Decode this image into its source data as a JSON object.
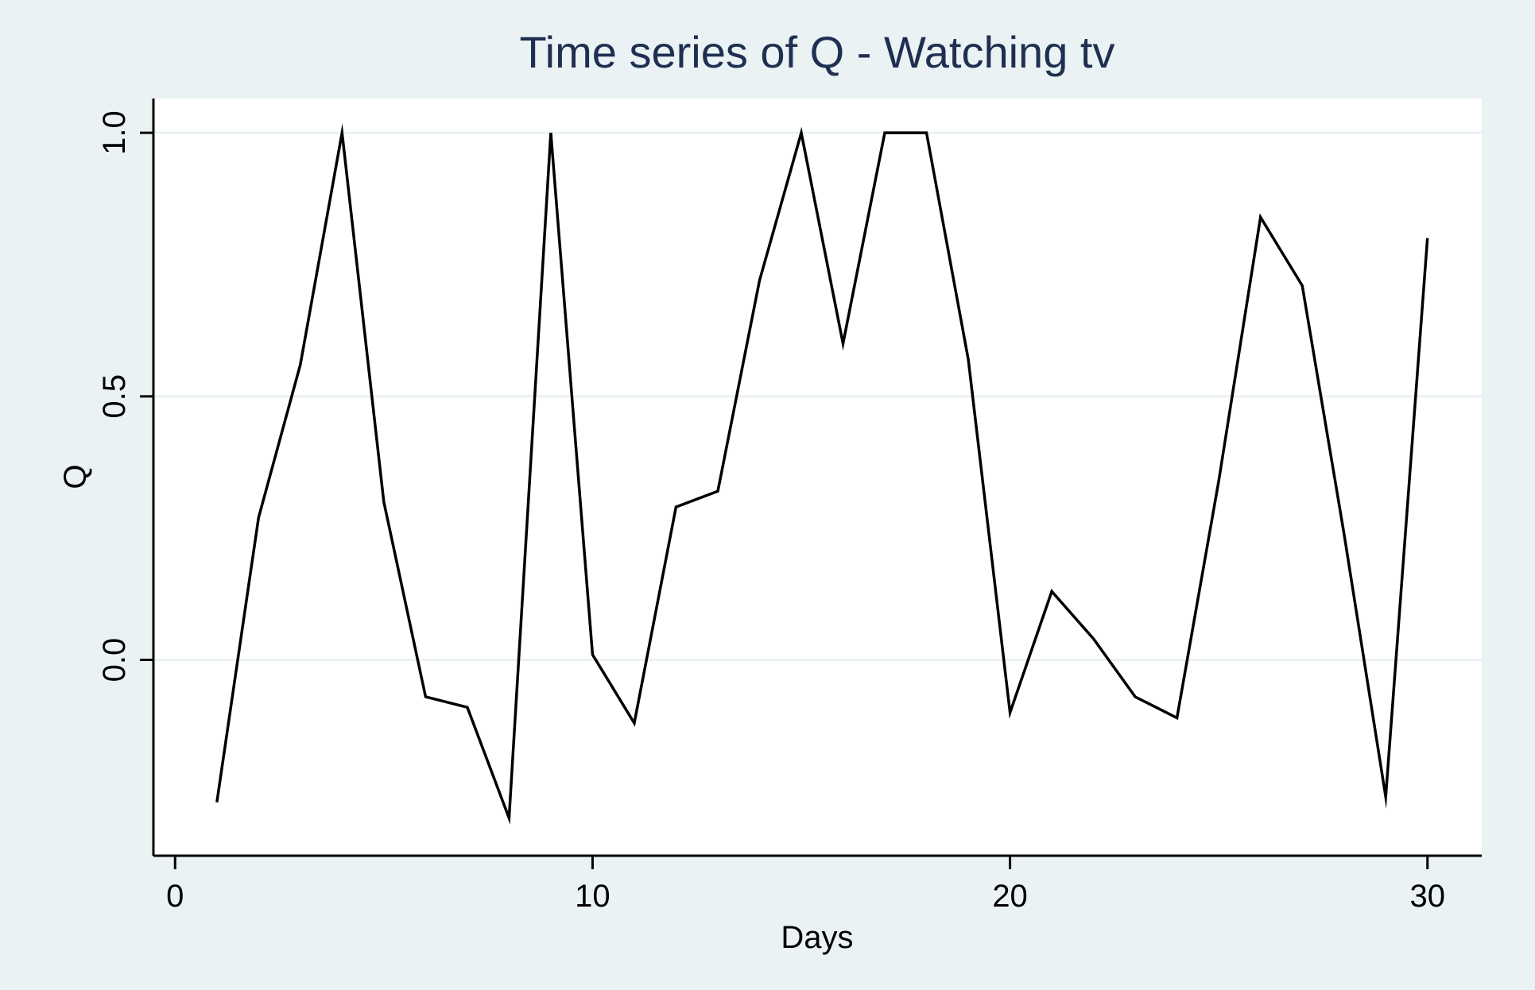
{
  "chart_data": {
    "type": "line",
    "title": "Time series of Q - Watching tv",
    "xlabel": "Days",
    "ylabel": "Q",
    "xlim": [
      -0.5,
      31.3
    ],
    "ylim": [
      -0.37,
      1.065
    ],
    "xticks": [
      0,
      10,
      20,
      30
    ],
    "xtick_labels": [
      "0",
      "10",
      "20",
      "30"
    ],
    "yticks": [
      0,
      0.5,
      1
    ],
    "ytick_labels": [
      "0.0",
      "0.5",
      "1.0"
    ],
    "grid": "horizontal",
    "legend": "none",
    "series": [
      {
        "x": [
          1,
          2,
          3,
          4,
          5,
          6,
          7,
          8,
          9,
          10,
          11,
          12,
          13,
          14,
          15,
          16,
          17,
          18,
          19,
          20,
          21,
          22,
          23,
          24,
          25,
          26,
          27,
          28,
          29,
          30
        ],
        "values": [
          -0.27,
          0.27,
          0.56,
          1.0,
          0.3,
          -0.07,
          -0.09,
          -0.3,
          1.0,
          0.01,
          -0.12,
          0.29,
          0.32,
          0.72,
          1.0,
          0.6,
          1.0,
          1.0,
          0.57,
          -0.1,
          0.13,
          0.04,
          -0.07,
          -0.11,
          0.34,
          0.84,
          0.71,
          0.24,
          -0.26,
          0.8
        ]
      }
    ],
    "colors": {
      "page_background": "#eaf2f3",
      "plot_background": "#ffffff",
      "gridline": "#eaf2f3",
      "line": "#000000",
      "title": "#1f2f52"
    }
  }
}
